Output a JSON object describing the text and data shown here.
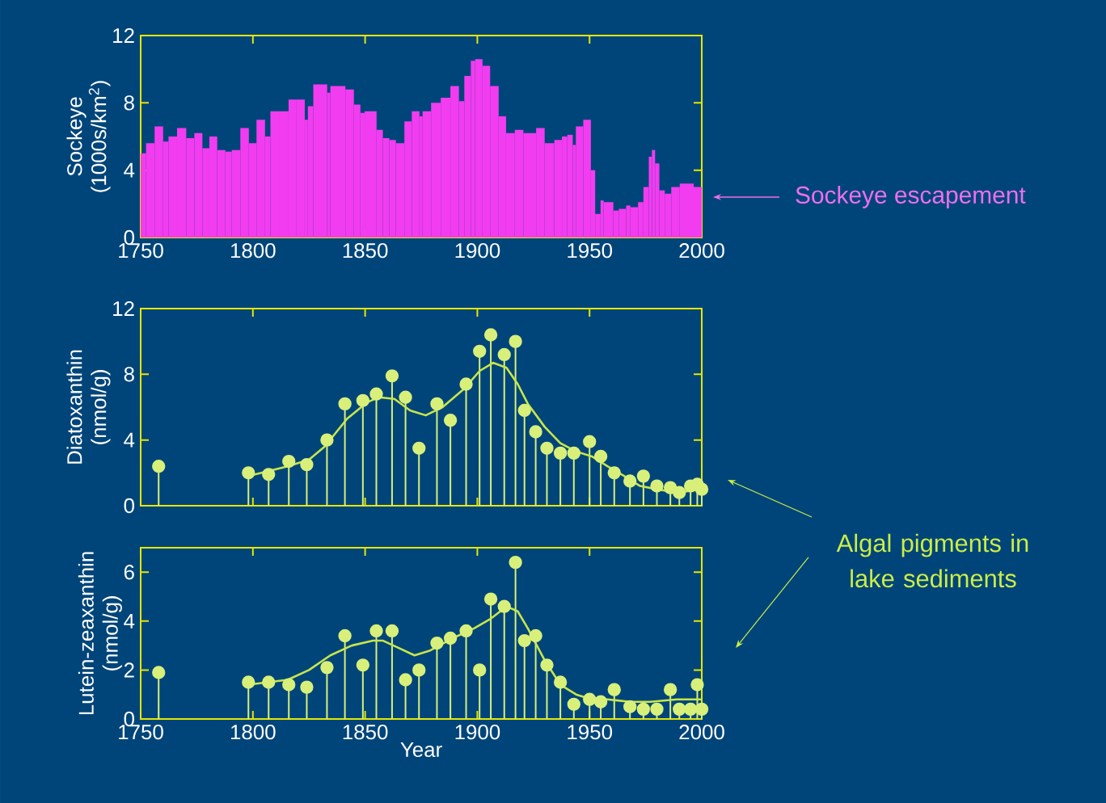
{
  "chart_data": [
    {
      "type": "histogram",
      "ylabel": "Sockeye (1000s/km$^{2}$)",
      "color": "#f23cf0",
      "bins": [
        1750,
        1752.4,
        1756.2,
        1760,
        1762.4,
        1766.2,
        1770.3,
        1773.9,
        1777.5,
        1780.6,
        1784.1,
        1787.7,
        1790.6,
        1794.4,
        1798.2,
        1801.6,
        1805.4,
        1807.8,
        1811.6,
        1815.9,
        1819.2,
        1823.1,
        1824.5,
        1826.9,
        1833.1,
        1834.5,
        1841.2,
        1845,
        1847.9,
        1849.8,
        1855.1,
        1857.9,
        1860.8,
        1863.7,
        1867.5,
        1870.8,
        1874.2,
        1875.6,
        1879.4,
        1883.7,
        1888,
        1891.8,
        1894.2,
        1897.1,
        1899,
        1902.3,
        1905.7,
        1909.5,
        1912.8,
        1916.7,
        1920.5,
        1926.2,
        1930,
        1934.3,
        1937.7,
        1940.1,
        1942.5,
        1943.9,
        1947.2,
        1950.6,
        1952.5,
        1954.9,
        1956.3,
        1960.6,
        1963,
        1966.3,
        1968.2,
        1971.6,
        1974,
        1976.4,
        1977.8,
        1979.2,
        1981.1,
        1983.5,
        1986.4,
        1990.2,
        1996.4,
        2000
      ],
      "values": [
        5.0,
        5.6,
        6.6,
        5.7,
        6.0,
        6.5,
        5.9,
        6.2,
        5.3,
        6.0,
        5.2,
        5.1,
        5.2,
        6.5,
        5.6,
        7.0,
        6.0,
        7.5,
        7.5,
        8.2,
        8.2,
        7.0,
        7.8,
        9.1,
        8.6,
        9.0,
        8.8,
        7.9,
        7.4,
        7.5,
        6.4,
        5.9,
        5.8,
        5.6,
        6.9,
        7.5,
        7.2,
        7.5,
        8.0,
        8.3,
        9.0,
        8.1,
        9.6,
        10.5,
        10.6,
        10.2,
        9.0,
        7.2,
        6.2,
        6.4,
        6.2,
        6.5,
        5.6,
        5.8,
        6.0,
        6.1,
        5.5,
        6.6,
        7.0,
        4.0,
        1.4,
        2.2,
        2.1,
        1.6,
        1.7,
        1.9,
        1.8,
        2.1,
        3.0,
        4.8,
        5.2,
        4.4,
        2.8,
        2.6,
        3.0,
        3.2,
        3.0
      ],
      "xlim": [
        1750,
        2000
      ],
      "xticks": [
        1750,
        1800,
        1850,
        1900,
        1950,
        2000
      ],
      "ylim": [
        0,
        12
      ],
      "yticks": [
        0,
        4,
        8,
        12
      ],
      "annotations": [
        "Sockeye escapement"
      ]
    },
    {
      "type": "lollipop",
      "ylabel": "Diatoxanthin (nmol/g)",
      "series": [
        {
          "type": "lollipop",
          "marker": "circle",
          "color": "#d8f07a",
          "x": [
            1758,
            1798,
            1807,
            1816,
            1824,
            1833,
            1841,
            1849,
            1855,
            1862,
            1868,
            1874,
            1882,
            1888,
            1895,
            1901,
            1906,
            1912,
            1917,
            1921,
            1926,
            1931,
            1937,
            1943,
            1950,
            1955,
            1961,
            1968,
            1974,
            1980,
            1986,
            1990,
            1995,
            1998,
            2000
          ],
          "values": [
            2.4,
            2.0,
            1.9,
            2.7,
            2.5,
            4.0,
            6.2,
            6.4,
            6.8,
            7.9,
            6.6,
            3.5,
            6.2,
            5.2,
            7.4,
            9.4,
            10.4,
            9.2,
            10.0,
            5.8,
            4.5,
            3.5,
            3.2,
            3.2,
            3.9,
            3.0,
            2.0,
            1.5,
            1.8,
            1.2,
            1.1,
            0.8,
            1.2,
            1.3,
            1.0
          ]
        },
        {
          "type": "line",
          "marker": "none",
          "line_style": "solid",
          "color": "#c8e64a",
          "x": [
            1798,
            1815.5,
            1825,
            1832,
            1842,
            1851,
            1856,
            1863,
            1870,
            1877,
            1884.5,
            1894,
            1901,
            1907,
            1913,
            1918,
            1922.5,
            1930,
            1937,
            1944,
            1951,
            1958,
            1965.5,
            1972.5,
            1980,
            1989,
            2000
          ],
          "values": [
            1.8,
            2.4,
            2.8,
            3.6,
            5.3,
            6.3,
            6.6,
            6.5,
            5.8,
            5.5,
            6.0,
            7.1,
            8.2,
            8.7,
            8.4,
            7.4,
            6.2,
            4.8,
            3.8,
            3.3,
            3.0,
            2.4,
            1.8,
            1.2,
            1.0,
            0.8,
            1.0
          ]
        }
      ],
      "xlim": [
        1750,
        2000
      ],
      "xticks": [
        1750,
        1800,
        1850,
        1900,
        1950,
        2000
      ],
      "ylim": [
        0,
        12
      ],
      "yticks": [
        0,
        4,
        8,
        12
      ],
      "tick_labels": "y",
      "annotations": [
        "Algal pigments in lake sediments"
      ]
    },
    {
      "type": "lollipop",
      "ylabel": "Lutein-zeaxanthin (nmol/g)",
      "xlabel": "Year",
      "series": [
        {
          "type": "lollipop",
          "marker": "circle",
          "color": "#d8f07a",
          "x": [
            1758,
            1798,
            1807,
            1816,
            1824,
            1833,
            1841,
            1849,
            1855,
            1862,
            1868,
            1874,
            1882,
            1888,
            1895,
            1901,
            1906,
            1912,
            1917,
            1921,
            1926,
            1931,
            1937,
            1943,
            1950,
            1955,
            1961,
            1968,
            1974,
            1980,
            1986,
            1990,
            1995,
            1998,
            2000
          ],
          "values": [
            1.9,
            1.5,
            1.5,
            1.4,
            1.3,
            2.1,
            3.4,
            2.2,
            3.6,
            3.6,
            1.6,
            2.0,
            3.1,
            3.3,
            3.6,
            2.0,
            4.9,
            4.6,
            6.4,
            3.2,
            3.4,
            2.2,
            1.5,
            0.6,
            0.8,
            0.7,
            1.2,
            0.5,
            0.4,
            0.4,
            1.2,
            0.4,
            0.4,
            1.4,
            0.4
          ]
        },
        {
          "type": "line",
          "marker": "none",
          "line_style": "solid",
          "color": "#c8e64a",
          "x": [
            1798,
            1815.5,
            1825,
            1834.5,
            1844,
            1853.5,
            1858,
            1865,
            1872,
            1879,
            1889,
            1898.5,
            1906,
            1913,
            1918,
            1922.5,
            1930,
            1937,
            1944,
            1951,
            1958,
            1968,
            1977,
            1989,
            2000
          ],
          "values": [
            1.4,
            1.6,
            2.0,
            2.6,
            3.0,
            3.2,
            3.2,
            2.9,
            2.6,
            2.8,
            3.3,
            3.7,
            4.1,
            4.6,
            4.4,
            3.7,
            2.4,
            1.4,
            1.0,
            0.8,
            0.8,
            0.7,
            0.7,
            0.8,
            0.8
          ]
        }
      ],
      "xlim": [
        1750,
        2000
      ],
      "xticks": [
        1750,
        1800,
        1850,
        1900,
        1950,
        2000
      ],
      "ylim": [
        0,
        7
      ],
      "yticks": [
        0,
        2,
        4,
        6
      ]
    }
  ]
}
